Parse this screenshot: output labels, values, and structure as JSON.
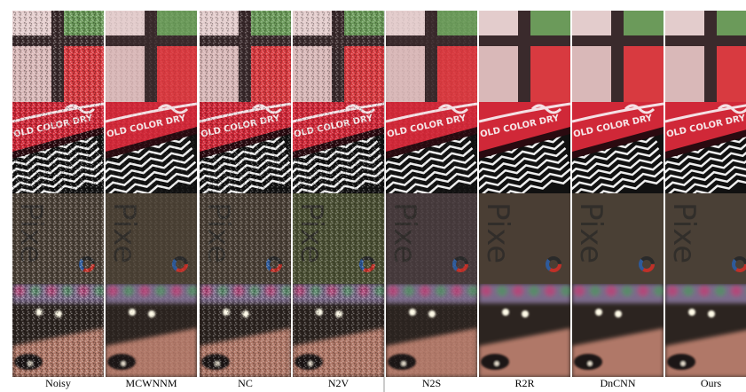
{
  "columns": [
    "Noisy",
    "MCWNNM",
    "NC",
    "N2V",
    "N2S",
    "R2R",
    "DnCNN",
    "Ours"
  ],
  "patch_texts": {
    "fabric": "OLD COLOR DRY",
    "phone": "Pixe"
  }
}
